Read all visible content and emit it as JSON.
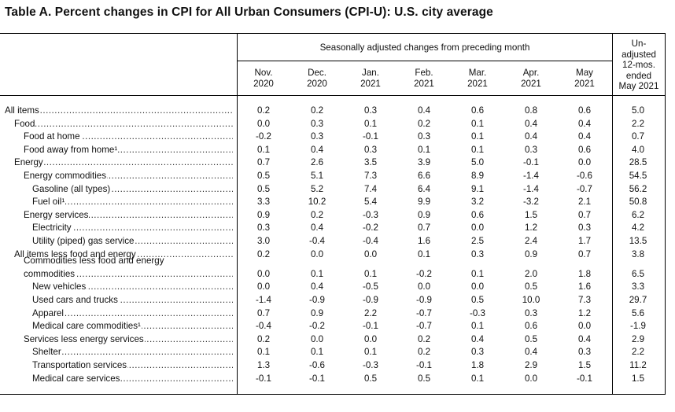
{
  "title": "Table A. Percent changes in CPI for All Urban Consumers (CPI-U): U.S. city average",
  "header": {
    "seasonal_group": "Seasonally adjusted changes from preceding month",
    "columns": [
      {
        "l1": "Nov.",
        "l2": "2020"
      },
      {
        "l1": "Dec.",
        "l2": "2020"
      },
      {
        "l1": "Jan.",
        "l2": "2021"
      },
      {
        "l1": "Feb.",
        "l2": "2021"
      },
      {
        "l1": "Mar.",
        "l2": "2021"
      },
      {
        "l1": "Apr.",
        "l2": "2021"
      },
      {
        "l1": "May",
        "l2": "2021"
      }
    ],
    "unadjusted": [
      "Un-",
      "adjusted",
      "12-mos.",
      "ended",
      "May 2021"
    ]
  },
  "rows": [
    {
      "label": "All items",
      "indent": 0,
      "values": [
        "0.2",
        "0.2",
        "0.3",
        "0.4",
        "0.6",
        "0.8",
        "0.6",
        "5.0"
      ]
    },
    {
      "label": "Food",
      "indent": 1,
      "values": [
        "0.0",
        "0.3",
        "0.1",
        "0.2",
        "0.1",
        "0.4",
        "0.4",
        "2.2"
      ]
    },
    {
      "label": "Food at home",
      "indent": 2,
      "values": [
        "-0.2",
        "0.3",
        "-0.1",
        "0.3",
        "0.1",
        "0.4",
        "0.4",
        "0.7"
      ]
    },
    {
      "label": "Food away from home¹",
      "indent": 2,
      "values": [
        "0.1",
        "0.4",
        "0.3",
        "0.1",
        "0.1",
        "0.3",
        "0.6",
        "4.0"
      ]
    },
    {
      "label": "Energy",
      "indent": 1,
      "values": [
        "0.7",
        "2.6",
        "3.5",
        "3.9",
        "5.0",
        "-0.1",
        "0.0",
        "28.5"
      ]
    },
    {
      "label": "Energy commodities",
      "indent": 2,
      "values": [
        "0.5",
        "5.1",
        "7.3",
        "6.6",
        "8.9",
        "-1.4",
        "-0.6",
        "54.5"
      ]
    },
    {
      "label": "Gasoline (all types)",
      "indent": 3,
      "values": [
        "0.5",
        "5.2",
        "7.4",
        "6.4",
        "9.1",
        "-1.4",
        "-0.7",
        "56.2"
      ]
    },
    {
      "label": "Fuel oil¹",
      "indent": 3,
      "values": [
        "3.3",
        "10.2",
        "5.4",
        "9.9",
        "3.2",
        "-3.2",
        "2.1",
        "50.8"
      ]
    },
    {
      "label": "Energy services",
      "indent": 2,
      "values": [
        "0.9",
        "0.2",
        "-0.3",
        "0.9",
        "0.6",
        "1.5",
        "0.7",
        "6.2"
      ]
    },
    {
      "label": "Electricity",
      "indent": 3,
      "values": [
        "0.3",
        "0.4",
        "-0.2",
        "0.7",
        "0.0",
        "1.2",
        "0.3",
        "4.2"
      ]
    },
    {
      "label": "Utility (piped) gas service",
      "indent": 3,
      "values": [
        "3.0",
        "-0.4",
        "-0.4",
        "1.6",
        "2.5",
        "2.4",
        "1.7",
        "13.5"
      ]
    },
    {
      "label": "All items less food and energy",
      "indent": 1,
      "values": [
        "0.2",
        "0.0",
        "0.0",
        "0.1",
        "0.3",
        "0.9",
        "0.7",
        "3.8"
      ]
    },
    {
      "label_top": "Commodities less food and energy",
      "label": "commodities",
      "indent": 2,
      "values": [
        "0.0",
        "0.1",
        "0.1",
        "-0.2",
        "0.1",
        "2.0",
        "1.8",
        "6.5"
      ]
    },
    {
      "label": "New vehicles",
      "indent": 3,
      "values": [
        "0.0",
        "0.4",
        "-0.5",
        "0.0",
        "0.0",
        "0.5",
        "1.6",
        "3.3"
      ]
    },
    {
      "label": "Used cars and trucks",
      "indent": 3,
      "values": [
        "-1.4",
        "-0.9",
        "-0.9",
        "-0.9",
        "0.5",
        "10.0",
        "7.3",
        "29.7"
      ]
    },
    {
      "label": "Apparel",
      "indent": 3,
      "values": [
        "0.7",
        "0.9",
        "2.2",
        "-0.7",
        "-0.3",
        "0.3",
        "1.2",
        "5.6"
      ]
    },
    {
      "label": "Medical care commodities¹",
      "indent": 3,
      "values": [
        "-0.4",
        "-0.2",
        "-0.1",
        "-0.7",
        "0.1",
        "0.6",
        "0.0",
        "-1.9"
      ]
    },
    {
      "label": "Services less energy services",
      "indent": 2,
      "values": [
        "0.2",
        "0.0",
        "0.0",
        "0.2",
        "0.4",
        "0.5",
        "0.4",
        "2.9"
      ]
    },
    {
      "label": "Shelter",
      "indent": 3,
      "values": [
        "0.1",
        "0.1",
        "0.1",
        "0.2",
        "0.3",
        "0.4",
        "0.3",
        "2.2"
      ]
    },
    {
      "label": "Transportation services",
      "indent": 3,
      "values": [
        "1.3",
        "-0.6",
        "-0.3",
        "-0.1",
        "1.8",
        "2.9",
        "1.5",
        "11.2"
      ]
    },
    {
      "label": "Medical care services",
      "indent": 3,
      "values": [
        "-0.1",
        "-0.1",
        "0.5",
        "0.5",
        "0.1",
        "0.0",
        "-0.1",
        "1.5"
      ]
    }
  ]
}
